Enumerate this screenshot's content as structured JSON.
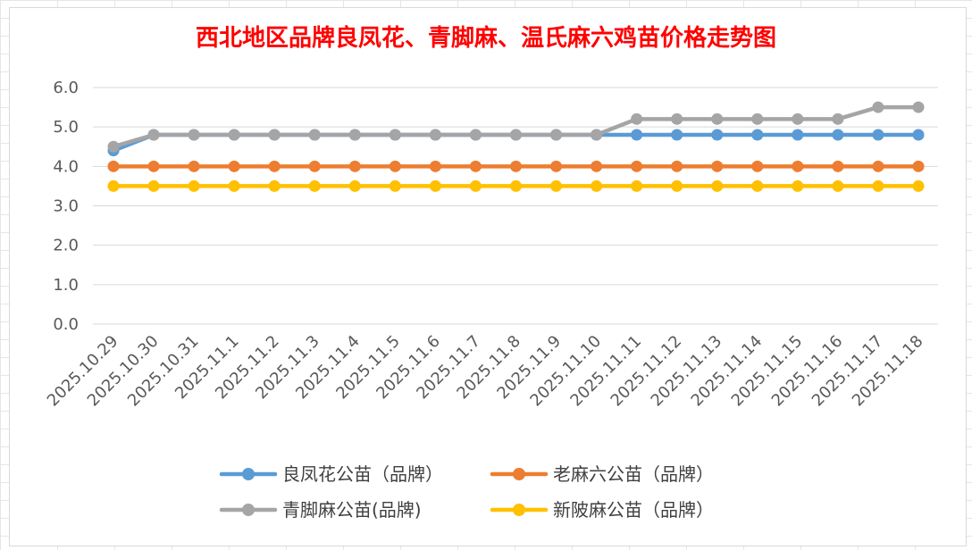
{
  "chart_data": {
    "type": "line",
    "title": "西北地区品牌良凤花、青脚麻、温氏麻六鸡苗价格走势图",
    "xlabel": "",
    "ylabel": "",
    "ylim": [
      0,
      6
    ],
    "yticks": [
      "0.0",
      "1.0",
      "2.0",
      "3.0",
      "4.0",
      "5.0",
      "6.0"
    ],
    "grid": true,
    "legend_position": "bottom",
    "categories": [
      "2025.10.29",
      "2025.10.30",
      "2025.10.31",
      "2025.11.1",
      "2025.11.2",
      "2025.11.3",
      "2025.11.4",
      "2025.11.5",
      "2025.11.6",
      "2025.11.7",
      "2025.11.8",
      "2025.11.9",
      "2025.11.10",
      "2025.11.11",
      "2025.11.12",
      "2025.11.13",
      "2025.11.14",
      "2025.11.15",
      "2025.11.16",
      "2025.11.17",
      "2025.11.18"
    ],
    "series": [
      {
        "name": "良凤花公苗（品牌）",
        "color": "#5b9bd5",
        "values": [
          4.4,
          4.8,
          4.8,
          4.8,
          4.8,
          4.8,
          4.8,
          4.8,
          4.8,
          4.8,
          4.8,
          4.8,
          4.8,
          4.8,
          4.8,
          4.8,
          4.8,
          4.8,
          4.8,
          4.8,
          4.8
        ]
      },
      {
        "name": "老麻六公苗（品牌）",
        "color": "#ed7d31",
        "values": [
          4.0,
          4.0,
          4.0,
          4.0,
          4.0,
          4.0,
          4.0,
          4.0,
          4.0,
          4.0,
          4.0,
          4.0,
          4.0,
          4.0,
          4.0,
          4.0,
          4.0,
          4.0,
          4.0,
          4.0,
          4.0
        ]
      },
      {
        "name": "青脚麻公苗(品牌)",
        "color": "#a5a5a5",
        "values": [
          4.5,
          4.8,
          4.8,
          4.8,
          4.8,
          4.8,
          4.8,
          4.8,
          4.8,
          4.8,
          4.8,
          4.8,
          4.8,
          5.2,
          5.2,
          5.2,
          5.2,
          5.2,
          5.2,
          5.5,
          5.5
        ]
      },
      {
        "name": "新陂麻公苗（品牌）",
        "color": "#ffc000",
        "values": [
          3.5,
          3.5,
          3.5,
          3.5,
          3.5,
          3.5,
          3.5,
          3.5,
          3.5,
          3.5,
          3.5,
          3.5,
          3.5,
          3.5,
          3.5,
          3.5,
          3.5,
          3.5,
          3.5,
          3.5,
          3.5
        ]
      }
    ],
    "draw_order": [
      0,
      1,
      3,
      2
    ]
  }
}
